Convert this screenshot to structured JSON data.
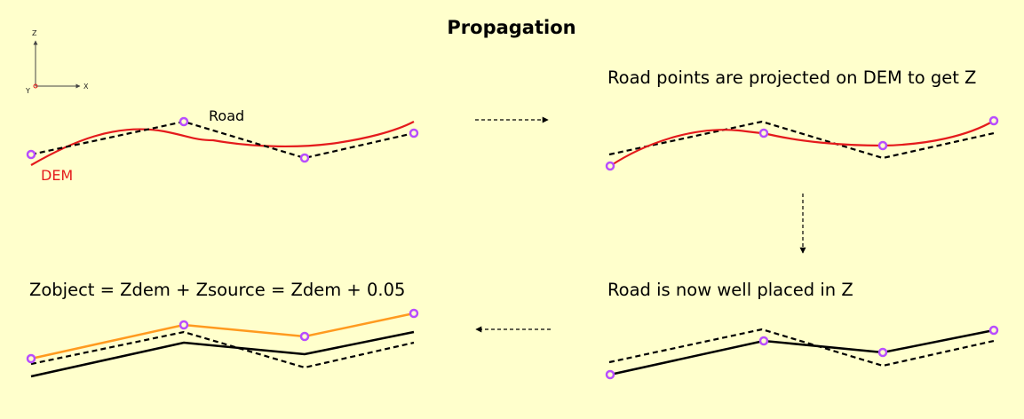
{
  "title": "Propagation",
  "axes": {
    "z": "Z",
    "x": "X",
    "y": "Y"
  },
  "colors": {
    "background": "#ffffcc",
    "dem": "#e41a1c",
    "road": "#000000",
    "object": "#ff9a1f",
    "vertex": "#b84dff"
  },
  "panels": {
    "initial": {
      "road_label": "Road",
      "dem_label": "DEM"
    },
    "projected": {
      "caption": "Road points are projected on DEM to get Z"
    },
    "placed": {
      "caption": "Road is now well placed in Z"
    },
    "object": {
      "caption": "Zobject = Zdem + Zsource = Zdem + 0.05"
    }
  }
}
